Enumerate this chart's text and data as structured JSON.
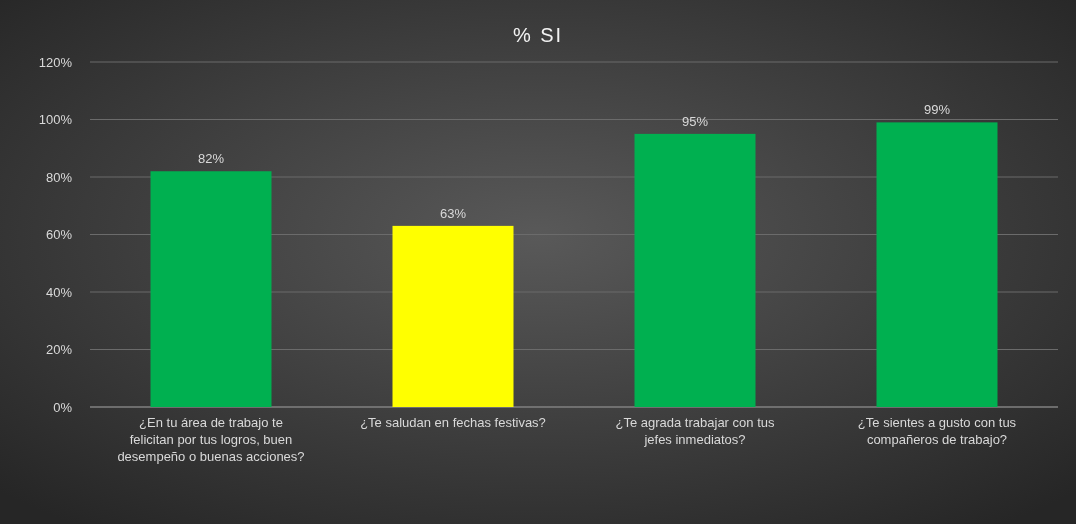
{
  "chart_data": {
    "type": "bar",
    "title": "% SI",
    "categories": [
      "¿En tu área de trabajo te felicitan por tus logros, buen desempeño o buenas acciones?",
      "¿Te saludan en fechas festivas?",
      "¿Te agrada trabajar con tus jefes inmediatos?",
      "¿Te sientes a gusto con tus compañeros  de trabajo?"
    ],
    "values": [
      82,
      63,
      95,
      99
    ],
    "colors": [
      "#00b050",
      "#ffff00",
      "#00b050",
      "#00b050"
    ],
    "value_labels": [
      "82%",
      "63%",
      "95%",
      "99%"
    ],
    "ylim": [
      0,
      120
    ],
    "yticks": [
      {
        "value": 0,
        "label": "0%"
      },
      {
        "value": 20,
        "label": "20%"
      },
      {
        "value": 40,
        "label": "40%"
      },
      {
        "value": 60,
        "label": "60%"
      },
      {
        "value": 80,
        "label": "80%"
      },
      {
        "value": 100,
        "label": "100%"
      },
      {
        "value": 120,
        "label": "120%"
      }
    ],
    "grid": "y"
  }
}
